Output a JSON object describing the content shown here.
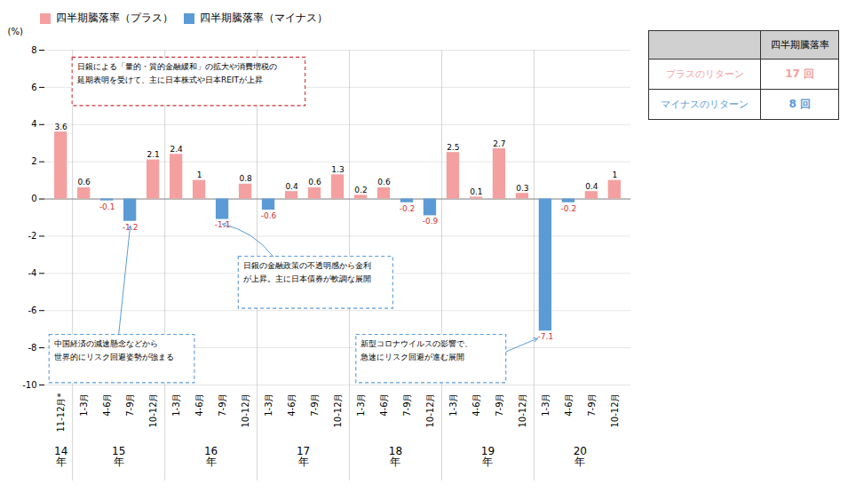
{
  "chart_data": {
    "type": "bar",
    "categories": [
      "11-12月*",
      "1-3月",
      "4-6月",
      "7-9月",
      "10-12月",
      "1-3月",
      "4-6月",
      "7-9月",
      "10-12月",
      "1-3月",
      "4-6月",
      "7-9月",
      "10-12月",
      "1-3月",
      "4-6月",
      "7-9月",
      "10-12月",
      "1-3月",
      "4-6月",
      "7-9月",
      "10-12月",
      "1-3月",
      "4-6月",
      "7-9月",
      "10-12月"
    ],
    "series": [
      {
        "name": "四半期騰落率（プラス）",
        "color": "#F4A0A0",
        "values": [
          3.6,
          0.6,
          null,
          null,
          2.1,
          2.4,
          1.0,
          null,
          0.8,
          null,
          0.4,
          0.6,
          1.3,
          0.2,
          0.6,
          null,
          null,
          2.5,
          0.1,
          2.7,
          0.3,
          null,
          null,
          0.4,
          1.0
        ]
      },
      {
        "name": "四半期騰落率（マイナス）",
        "color": "#5B9BD5",
        "values": [
          null,
          null,
          -0.1,
          -1.2,
          null,
          null,
          null,
          -1.1,
          null,
          -0.6,
          null,
          null,
          null,
          null,
          null,
          -0.2,
          -0.9,
          null,
          null,
          null,
          null,
          -7.1,
          -0.2,
          null,
          null
        ]
      }
    ],
    "ylabel": "(%)",
    "ylim": [
      -10,
      8
    ],
    "yticks": [
      -10,
      -8,
      -6,
      -4,
      -2,
      0,
      2,
      4,
      6,
      8
    ],
    "grid": true,
    "legend": "top-left",
    "data_labels": true,
    "x_groups": [
      {
        "label": "14\n年",
        "count": 1
      },
      {
        "label": "15\n年",
        "count": 4
      },
      {
        "label": "16\n年",
        "count": 4
      },
      {
        "label": "17\n年",
        "count": 4
      },
      {
        "label": "18\n年",
        "count": 4
      },
      {
        "label": "19\n年",
        "count": 4
      },
      {
        "label": "20\n年",
        "count": 4
      }
    ],
    "table": {
      "header": "四半期騰落率",
      "rows": [
        {
          "label": "プラスのリターン",
          "value": 17,
          "value_label": "17 回",
          "color": "#F4A0A0"
        },
        {
          "label": "マイナスのリターン",
          "value": 8,
          "value_label": "8 回",
          "color": "#5B9BD5"
        }
      ]
    },
    "annotations": [
      {
        "text": "日銀による「量的・質的金融緩和」の拡大や消費増税の\n延期表明を受けて、主に日本株式や日本REITが上昇",
        "color": "#CC3333"
      },
      {
        "text": "中国経済の減速懸念などから\n世界的にリスク回避姿勢が強まる",
        "color": "#5B9BD5",
        "target": 3
      },
      {
        "text": "日銀の金融政策の不透明感から金利\nが上昇。主に日本債券が軟調な展開",
        "color": "#5B9BD5",
        "target": 7
      },
      {
        "text": "新型コロナウイルスの影響で、\n急速にリスク回避が進む展開",
        "color": "#5B9BD5",
        "target": 21
      }
    ]
  }
}
